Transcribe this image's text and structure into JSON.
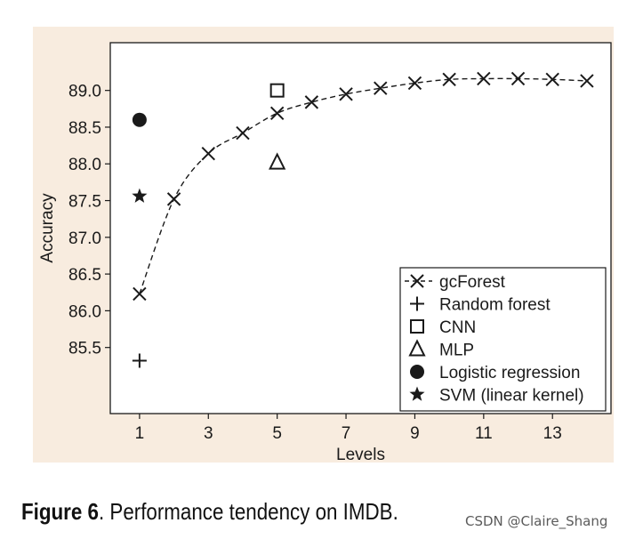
{
  "chart_data": {
    "type": "scatter",
    "xlabel": "Levels",
    "ylabel": "Accuracy",
    "xlim": [
      0.15,
      14.7
    ],
    "ylim": [
      84.6,
      89.65
    ],
    "xticks": [
      "1",
      "3",
      "5",
      "7",
      "9",
      "11",
      "13"
    ],
    "yticks": [
      "85.5",
      "86.0",
      "86.5",
      "87.0",
      "87.5",
      "88.0",
      "88.5",
      "89.0"
    ],
    "grid": false,
    "legend_position": "bottom-right",
    "series": [
      {
        "name": "gcForest",
        "marker": "x",
        "line": "dashed",
        "x": [
          1,
          2,
          3,
          4,
          5,
          6,
          7,
          8,
          9,
          10,
          11,
          12,
          13,
          14
        ],
        "y": [
          86.23,
          87.52,
          88.14,
          88.42,
          88.69,
          88.84,
          88.95,
          89.03,
          89.1,
          89.15,
          89.16,
          89.16,
          89.15,
          89.13
        ]
      },
      {
        "name": "Random forest",
        "marker": "plus",
        "x": [
          1
        ],
        "y": [
          85.32
        ]
      },
      {
        "name": "CNN",
        "marker": "square",
        "x": [
          5
        ],
        "y": [
          89.0
        ]
      },
      {
        "name": "MLP",
        "marker": "triangle",
        "x": [
          5
        ],
        "y": [
          88.02
        ]
      },
      {
        "name": "Logistic regression",
        "marker": "circle",
        "x": [
          1
        ],
        "y": [
          88.6
        ]
      },
      {
        "name": "SVM (linear kernel)",
        "marker": "star",
        "x": [
          1
        ],
        "y": [
          87.56
        ]
      }
    ]
  },
  "caption": {
    "label": "Figure 6",
    "text": ". Performance tendency on IMDB."
  },
  "watermark": "CSDN @Claire_Shang",
  "colors": {
    "panel": "#f8ecdf",
    "plot": "#ffffff",
    "ink": "#1a1a1a"
  }
}
